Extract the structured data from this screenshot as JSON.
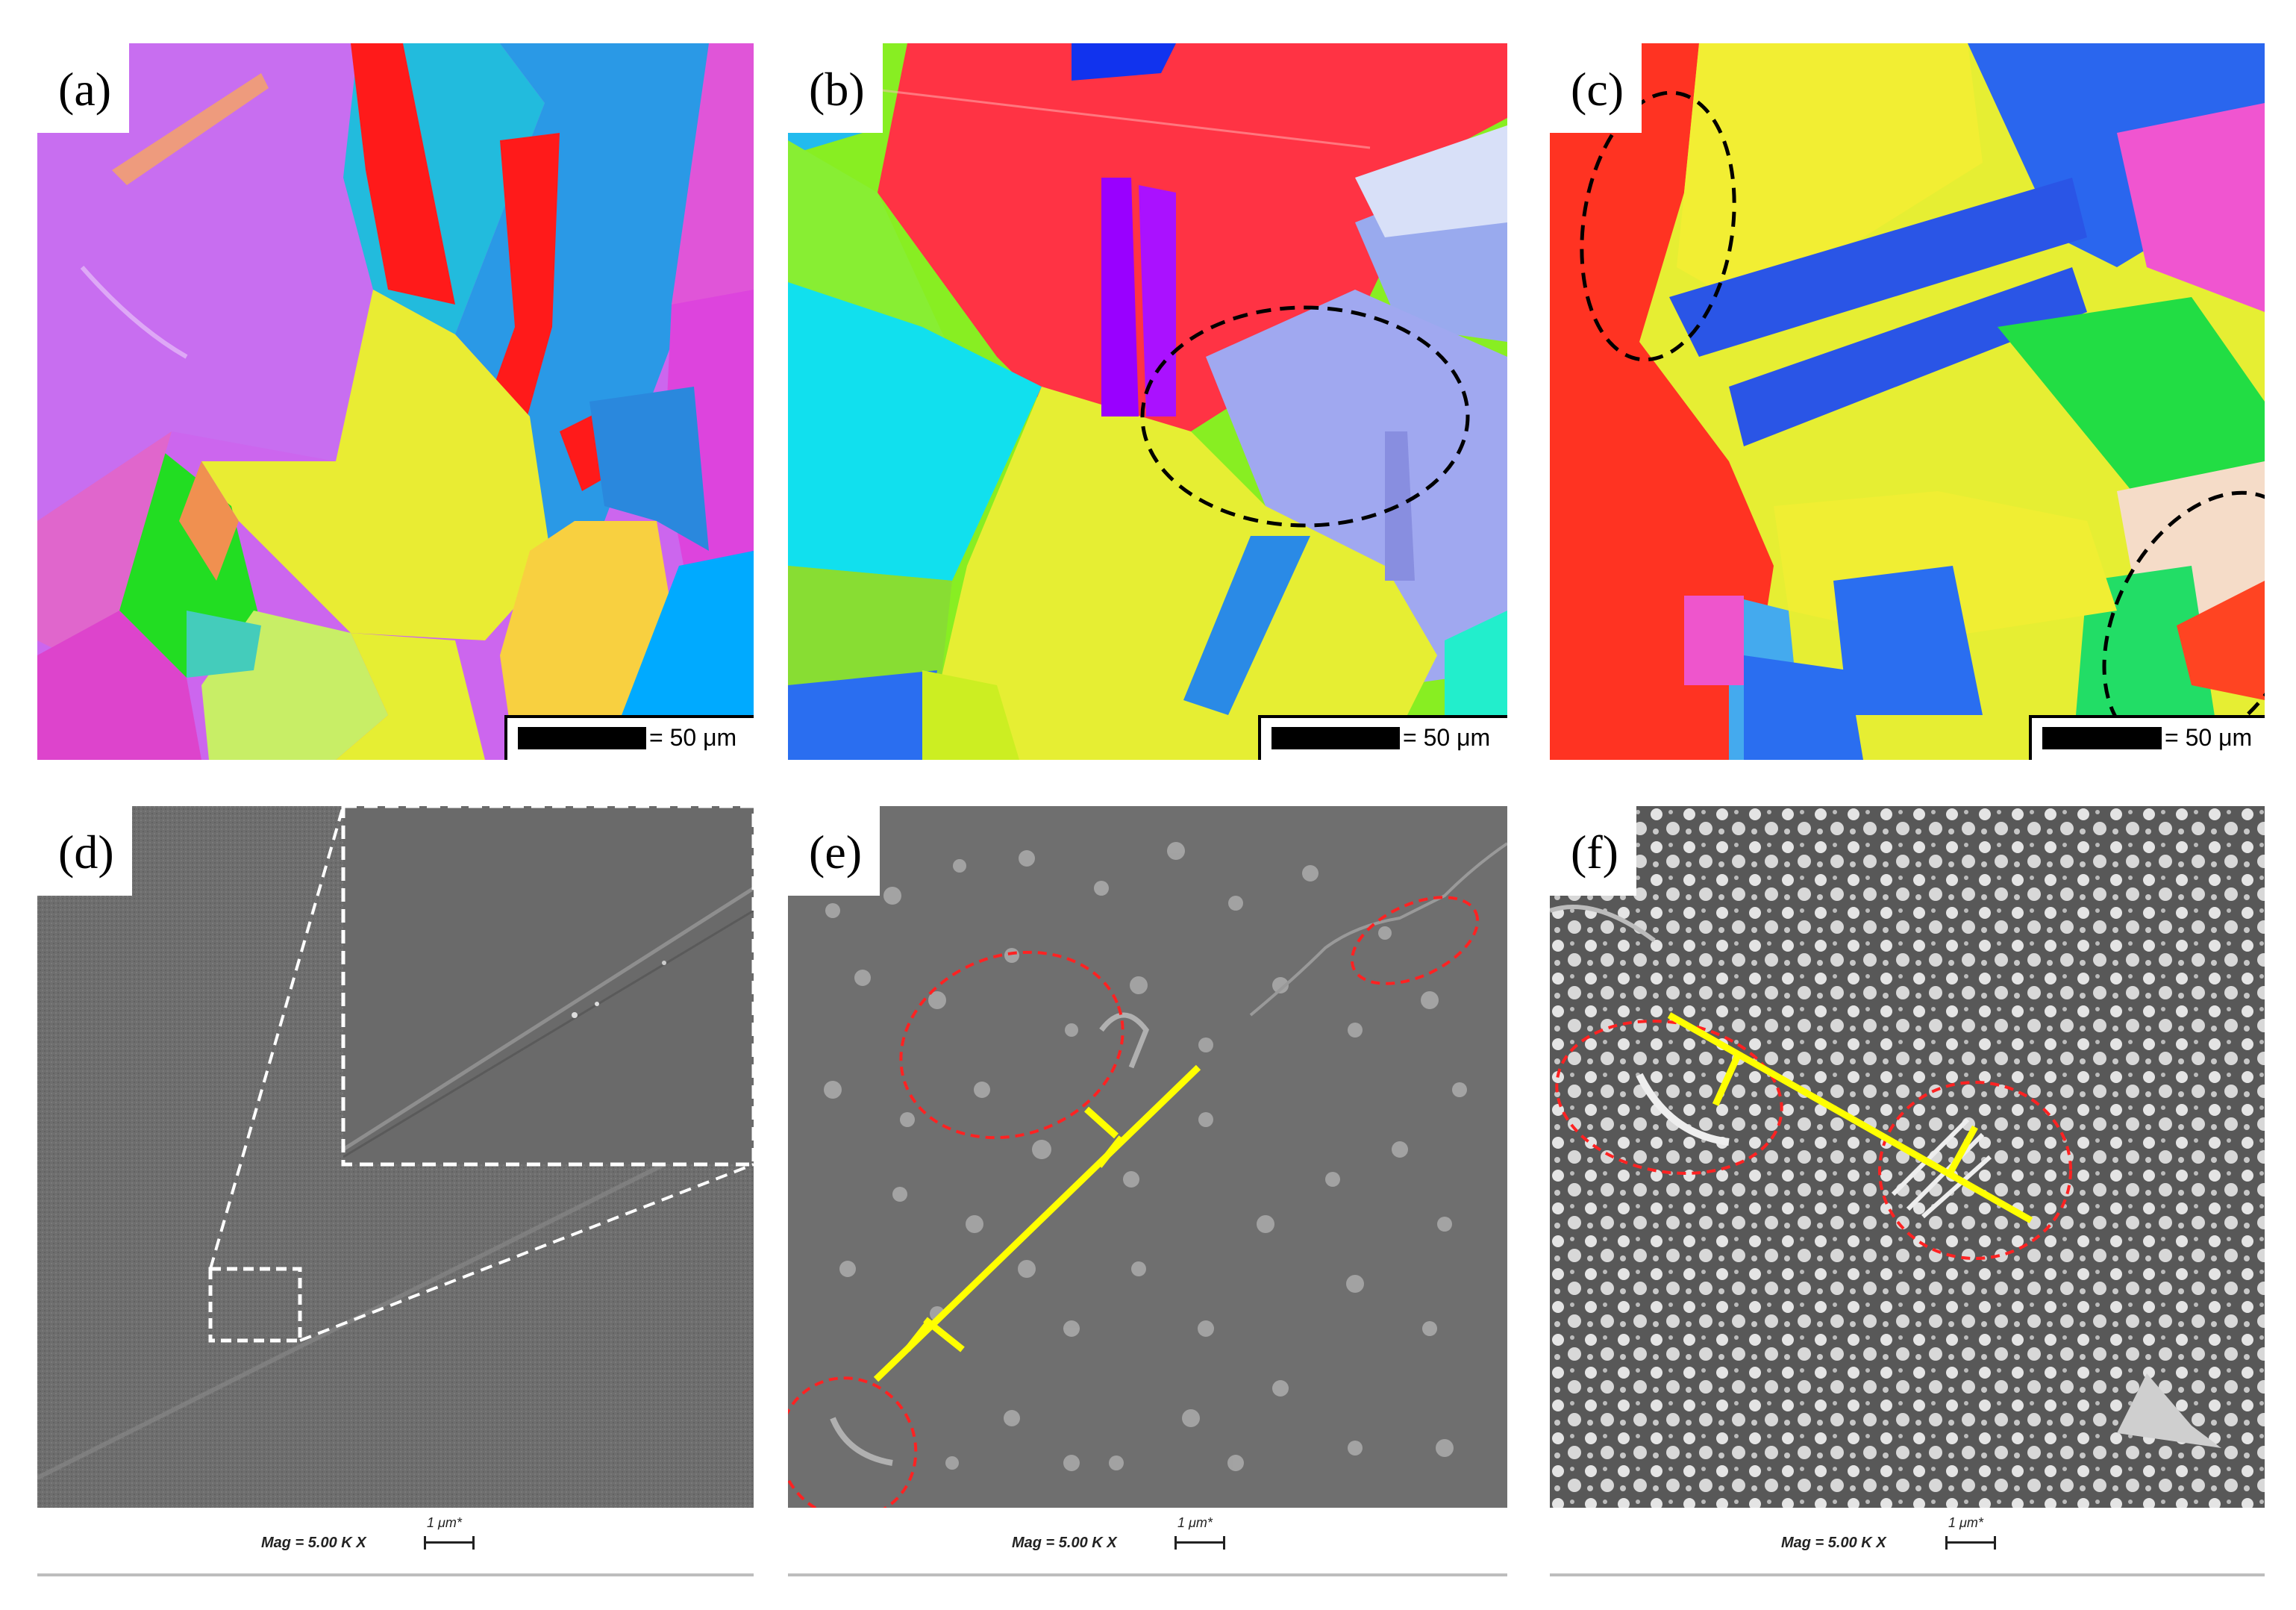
{
  "panels": [
    {
      "id": "a",
      "label": "(a)",
      "type": "ebsd",
      "scale_label": "= 50 μm"
    },
    {
      "id": "b",
      "label": "(b)",
      "type": "ebsd",
      "scale_label": "= 50 μm"
    },
    {
      "id": "c",
      "label": "(c)",
      "type": "ebsd",
      "scale_label": "= 50 μm"
    },
    {
      "id": "d",
      "label": "(d)",
      "type": "sem",
      "mag_label": "Mag = 5.00 K X",
      "scale_label": "1 μm*"
    },
    {
      "id": "e",
      "label": "(e)",
      "type": "sem",
      "mag_label": "Mag = 5.00 K X",
      "scale_label": "1 μm*"
    },
    {
      "id": "f",
      "label": "(f)",
      "type": "sem",
      "mag_label": "Mag = 5.00 K X",
      "scale_label": "1 μm*"
    }
  ],
  "annotation_colors": {
    "ellipse_ebsd": "#000000",
    "ellipse_sem": "#ff0000",
    "dislocation_line": "#ffff00",
    "inset_frame": "#ffffff"
  }
}
